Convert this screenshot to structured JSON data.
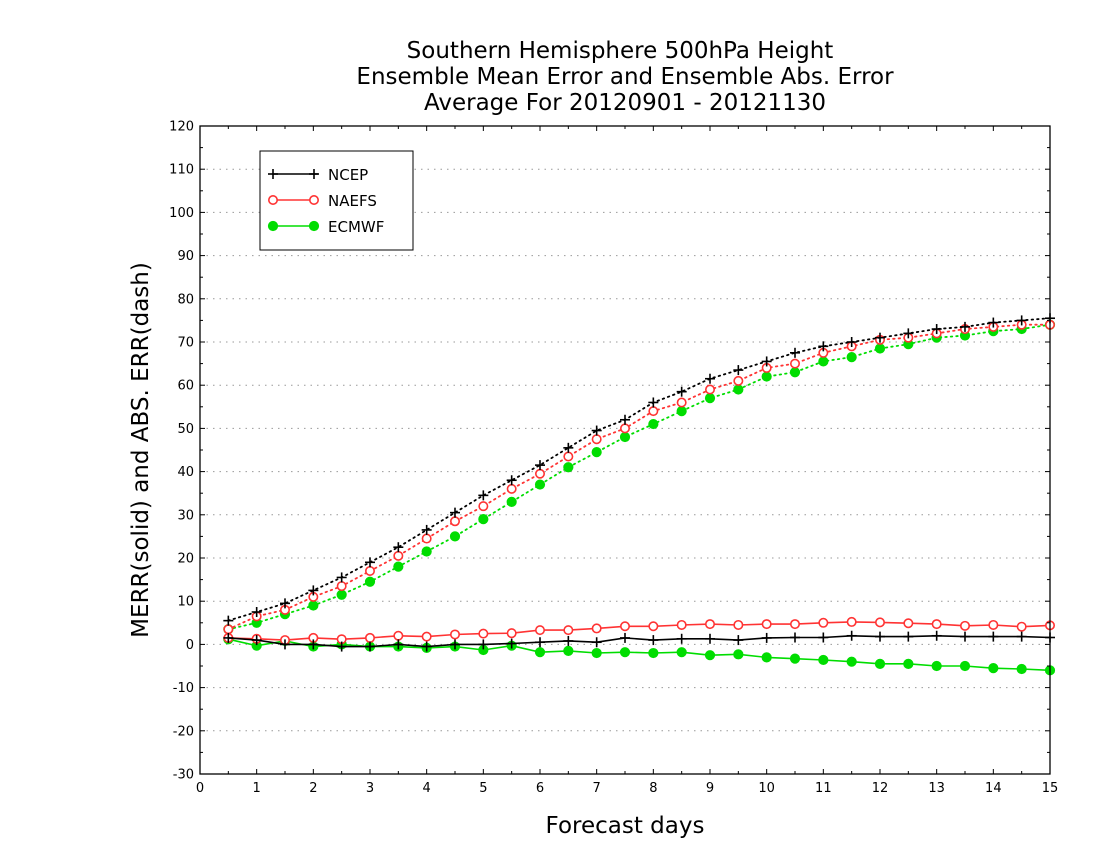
{
  "chart_data": {
    "type": "line",
    "title_lines": [
      "Southern Hemisphere 500hPa Height",
      "Ensemble Mean Error and Ensemble Abs. Error",
      "Average For 20120901 - 20121130"
    ],
    "xlabel": "Forecast days",
    "ylabel": "MERR(solid) and ABS. ERR(dash)",
    "xlim": [
      0,
      15
    ],
    "ylim": [
      -30,
      120
    ],
    "xticks": [
      "0",
      "1",
      "2",
      "3",
      "4",
      "5",
      "6",
      "7",
      "8",
      "9",
      "10",
      "11",
      "12",
      "13",
      "14",
      "15"
    ],
    "yticks": [
      "-30",
      "-20",
      "-10",
      "0",
      "10",
      "20",
      "30",
      "40",
      "50",
      "60",
      "70",
      "80",
      "90",
      "100",
      "110",
      "120"
    ],
    "grid": true,
    "legend_position": "top-left",
    "x": [
      0.5,
      1,
      1.5,
      2,
      2.5,
      3,
      3.5,
      4,
      4.5,
      5,
      5.5,
      6,
      6.5,
      7,
      7.5,
      8,
      8.5,
      9,
      9.5,
      10,
      10.5,
      11,
      11.5,
      12,
      12.5,
      13,
      13.5,
      14,
      14.5,
      15
    ],
    "series": [
      {
        "name": "NCEP",
        "color": "#000000",
        "marker": "plus",
        "abs_err": [
          5.5,
          7.5,
          9.5,
          12.5,
          15.5,
          19,
          22.5,
          26.5,
          30.5,
          34.5,
          38,
          41.5,
          45.5,
          49.5,
          52,
          56,
          58.5,
          61.5,
          63.5,
          65.5,
          67.5,
          69,
          70,
          71,
          72,
          73,
          73.5,
          74.5,
          75,
          75.5
        ],
        "mean_err": [
          1.5,
          1,
          0,
          0,
          -0.5,
          -0.5,
          0,
          -0.5,
          0,
          0,
          0.2,
          0.5,
          0.8,
          0.5,
          1.5,
          1,
          1.3,
          1.3,
          1,
          1.5,
          1.6,
          1.6,
          2,
          1.8,
          1.8,
          2,
          1.8,
          1.8,
          1.8,
          1.6
        ]
      },
      {
        "name": "NAEFS",
        "color": "#ff3333",
        "marker": "open-circle",
        "abs_err": [
          3.5,
          6.5,
          8,
          11,
          13.5,
          17,
          20.5,
          24.5,
          28.5,
          32,
          36,
          39.5,
          43.5,
          47.5,
          50,
          54,
          56,
          59,
          61,
          64,
          65,
          67.5,
          69,
          70.5,
          71,
          72,
          73,
          73.5,
          74,
          74
        ],
        "mean_err": [
          1.5,
          1.3,
          1,
          1.5,
          1.2,
          1.5,
          2,
          1.8,
          2.3,
          2.5,
          2.6,
          3.3,
          3.3,
          3.7,
          4.2,
          4.2,
          4.5,
          4.7,
          4.5,
          4.7,
          4.7,
          5,
          5.2,
          5.1,
          4.9,
          4.7,
          4.3,
          4.5,
          4.1,
          4.4
        ]
      },
      {
        "name": "ECMWF",
        "color": "#00dd00",
        "marker": "filled-circle",
        "abs_err": [
          3.5,
          5,
          7,
          9,
          11.5,
          14.5,
          18,
          21.5,
          25,
          29,
          33,
          37,
          41,
          44.5,
          48,
          51,
          54,
          57,
          59,
          62,
          63,
          65.5,
          66.5,
          68.5,
          69.5,
          71,
          71.5,
          72.5,
          73,
          74
        ],
        "mean_err": [
          1.2,
          -0.3,
          0.8,
          -0.5,
          0,
          -0.5,
          -0.5,
          -0.8,
          -0.5,
          -1.3,
          -0.3,
          -1.8,
          -1.5,
          -2,
          -1.8,
          -2,
          -1.8,
          -2.5,
          -2.3,
          -3,
          -3.3,
          -3.6,
          -4,
          -4.5,
          -4.5,
          -5,
          -5,
          -5.5,
          -5.7,
          -6
        ]
      }
    ]
  }
}
